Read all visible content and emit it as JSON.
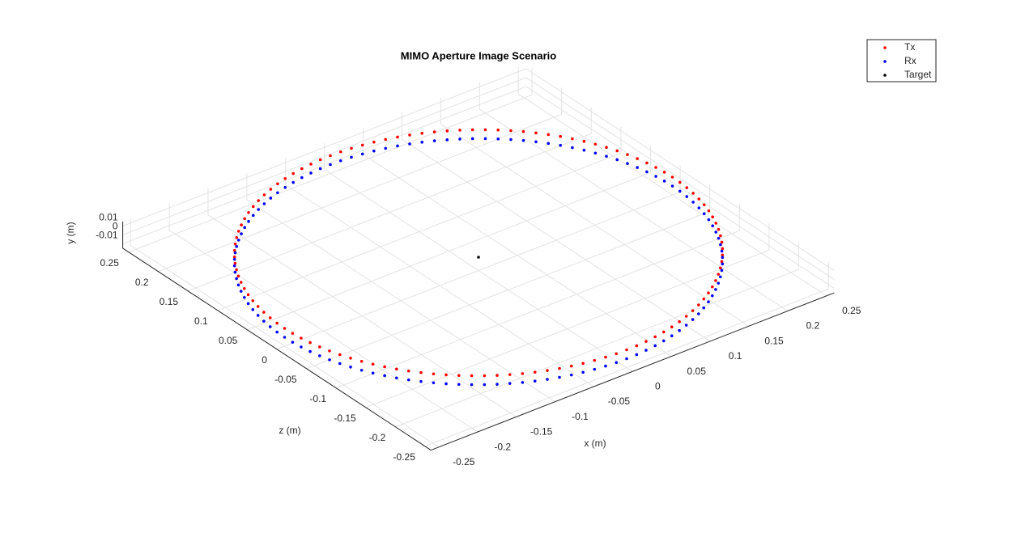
{
  "chart_data": {
    "type": "scatter3d",
    "title": "MIMO Aperture Image Scenario",
    "xlabel": "x (m)",
    "ylabel": "y (m)",
    "zlabel": "z (m)",
    "xlim": [
      -0.26,
      0.26
    ],
    "ylim": [
      -0.015,
      0.015
    ],
    "zlim": [
      -0.26,
      0.26
    ],
    "xticks": [
      -0.25,
      -0.2,
      -0.15,
      -0.1,
      -0.05,
      0,
      0.05,
      0.1,
      0.15,
      0.2,
      0.25
    ],
    "yticks": [
      -0.01,
      0,
      0.01
    ],
    "zticks": [
      -0.25,
      -0.2,
      -0.15,
      -0.1,
      -0.05,
      0,
      0.05,
      0.1,
      0.15,
      0.2,
      0.25
    ],
    "grid": true,
    "legend": "northeast",
    "series": [
      {
        "name": "Tx",
        "color": "#ff0000",
        "x": [
          0.25,
          0.2497,
          0.2486,
          0.2469,
          0.2445,
          0.2415,
          0.2378,
          0.2334,
          0.2284,
          0.2228,
          0.2165,
          0.2097,
          0.2023,
          0.1943,
          0.1858,
          0.1768,
          0.1673,
          0.1573,
          0.1469,
          0.1362,
          0.125,
          0.1135,
          0.1017,
          0.0896,
          0.0773,
          0.0647,
          0.052,
          0.0391,
          0.0261,
          0.0131,
          0,
          -0.0131,
          -0.0261,
          -0.0391,
          -0.052,
          -0.0647,
          -0.0773,
          -0.0896,
          -0.1017,
          -0.1135,
          -0.125,
          -0.1362,
          -0.1469,
          -0.1573,
          -0.1673,
          -0.1768,
          -0.1858,
          -0.1943,
          -0.2023,
          -0.2097,
          -0.2165,
          -0.2228,
          -0.2284,
          -0.2334,
          -0.2378,
          -0.2415,
          -0.2445,
          -0.2469,
          -0.2486,
          -0.2497,
          -0.25,
          -0.2497,
          -0.2486,
          -0.2469,
          -0.2445,
          -0.2415,
          -0.2378,
          -0.2334,
          -0.2284,
          -0.2228,
          -0.2165,
          -0.2097,
          -0.2023,
          -0.1943,
          -0.1858,
          -0.1768,
          -0.1673,
          -0.1573,
          -0.1469,
          -0.1362,
          -0.125,
          -0.1135,
          -0.1017,
          -0.0896,
          -0.0773,
          -0.0647,
          -0.052,
          -0.0391,
          -0.0261,
          -0.0131,
          0,
          0.0131,
          0.0261,
          0.0391,
          0.052,
          0.0647,
          0.0773,
          0.0896,
          0.1017,
          0.1135,
          0.125,
          0.1362,
          0.1469,
          0.1573,
          0.1673,
          0.1768,
          0.1858,
          0.1943,
          0.2023,
          0.2097,
          0.2165,
          0.2228,
          0.2284,
          0.2334,
          0.2378,
          0.2415,
          0.2445,
          0.2469,
          0.2486,
          0.2497
        ],
        "y": [
          0.005,
          0.005,
          0.005,
          0.005,
          0.005,
          0.005,
          0.005,
          0.005,
          0.005,
          0.005,
          0.005,
          0.005,
          0.005,
          0.005,
          0.005,
          0.005,
          0.005,
          0.005,
          0.005,
          0.005,
          0.005,
          0.005,
          0.005,
          0.005,
          0.005,
          0.005,
          0.005,
          0.005,
          0.005,
          0.005,
          0.005,
          0.005,
          0.005,
          0.005,
          0.005,
          0.005,
          0.005,
          0.005,
          0.005,
          0.005,
          0.005,
          0.005,
          0.005,
          0.005,
          0.005,
          0.005,
          0.005,
          0.005,
          0.005,
          0.005,
          0.005,
          0.005,
          0.005,
          0.005,
          0.005,
          0.005,
          0.005,
          0.005,
          0.005,
          0.005,
          0.005,
          0.005,
          0.005,
          0.005,
          0.005,
          0.005,
          0.005,
          0.005,
          0.005,
          0.005,
          0.005,
          0.005,
          0.005,
          0.005,
          0.005,
          0.005,
          0.005,
          0.005,
          0.005,
          0.005,
          0.005,
          0.005,
          0.005,
          0.005,
          0.005,
          0.005,
          0.005,
          0.005,
          0.005,
          0.005,
          0.005,
          0.005,
          0.005,
          0.005,
          0.005,
          0.005,
          0.005,
          0.005,
          0.005,
          0.005,
          0.005,
          0.005,
          0.005,
          0.005,
          0.005,
          0.005,
          0.005,
          0.005,
          0.005,
          0.005,
          0.005,
          0.005,
          0.005,
          0.005,
          0.005,
          0.005,
          0.005,
          0.005,
          0.005,
          0.005
        ],
        "z": [
          0,
          0.0131,
          0.0261,
          0.0391,
          0.052,
          0.0647,
          0.0773,
          0.0896,
          0.1017,
          0.1135,
          0.125,
          0.1362,
          0.1469,
          0.1573,
          0.1673,
          0.1768,
          0.1858,
          0.1943,
          0.2023,
          0.2097,
          0.2165,
          0.2228,
          0.2284,
          0.2334,
          0.2378,
          0.2415,
          0.2445,
          0.2469,
          0.2486,
          0.2497,
          0.25,
          0.2497,
          0.2486,
          0.2469,
          0.2445,
          0.2415,
          0.2378,
          0.2334,
          0.2284,
          0.2228,
          0.2165,
          0.2097,
          0.2023,
          0.1943,
          0.1858,
          0.1768,
          0.1673,
          0.1573,
          0.1469,
          0.1362,
          0.125,
          0.1135,
          0.1017,
          0.0896,
          0.0773,
          0.0647,
          0.052,
          0.0391,
          0.0261,
          0.0131,
          0,
          -0.0131,
          -0.0261,
          -0.0391,
          -0.052,
          -0.0647,
          -0.0773,
          -0.0896,
          -0.1017,
          -0.1135,
          -0.125,
          -0.1362,
          -0.1469,
          -0.1573,
          -0.1673,
          -0.1768,
          -0.1858,
          -0.1943,
          -0.2023,
          -0.2097,
          -0.2165,
          -0.2228,
          -0.2284,
          -0.2334,
          -0.2378,
          -0.2415,
          -0.2445,
          -0.2469,
          -0.2486,
          -0.2497,
          -0.25,
          -0.2497,
          -0.2486,
          -0.2469,
          -0.2445,
          -0.2415,
          -0.2378,
          -0.2334,
          -0.2284,
          -0.2228,
          -0.2165,
          -0.2097,
          -0.2023,
          -0.1943,
          -0.1858,
          -0.1768,
          -0.1673,
          -0.1573,
          -0.1469,
          -0.1362,
          -0.125,
          -0.1135,
          -0.1017,
          -0.0896,
          -0.0773,
          -0.0647,
          -0.052,
          -0.0391,
          -0.0261,
          -0.0131
        ]
      },
      {
        "name": "Rx",
        "color": "#0000ff",
        "x": [
          0.25,
          0.2497,
          0.2486,
          0.2469,
          0.2445,
          0.2415,
          0.2378,
          0.2334,
          0.2284,
          0.2228,
          0.2165,
          0.2097,
          0.2023,
          0.1943,
          0.1858,
          0.1768,
          0.1673,
          0.1573,
          0.1469,
          0.1362,
          0.125,
          0.1135,
          0.1017,
          0.0896,
          0.0773,
          0.0647,
          0.052,
          0.0391,
          0.0261,
          0.0131,
          0,
          -0.0131,
          -0.0261,
          -0.0391,
          -0.052,
          -0.0647,
          -0.0773,
          -0.0896,
          -0.1017,
          -0.1135,
          -0.125,
          -0.1362,
          -0.1469,
          -0.1573,
          -0.1673,
          -0.1768,
          -0.1858,
          -0.1943,
          -0.2023,
          -0.2097,
          -0.2165,
          -0.2228,
          -0.2284,
          -0.2334,
          -0.2378,
          -0.2415,
          -0.2445,
          -0.2469,
          -0.2486,
          -0.2497,
          -0.25,
          -0.2497,
          -0.2486,
          -0.2469,
          -0.2445,
          -0.2415,
          -0.2378,
          -0.2334,
          -0.2284,
          -0.2228,
          -0.2165,
          -0.2097,
          -0.2023,
          -0.1943,
          -0.1858,
          -0.1768,
          -0.1673,
          -0.1573,
          -0.1469,
          -0.1362,
          -0.125,
          -0.1135,
          -0.1017,
          -0.0896,
          -0.0773,
          -0.0647,
          -0.052,
          -0.0391,
          -0.0261,
          -0.0131,
          0,
          0.0131,
          0.0261,
          0.0391,
          0.052,
          0.0647,
          0.0773,
          0.0896,
          0.1017,
          0.1135,
          0.125,
          0.1362,
          0.1469,
          0.1573,
          0.1673,
          0.1768,
          0.1858,
          0.1943,
          0.2023,
          0.2097,
          0.2165,
          0.2228,
          0.2284,
          0.2334,
          0.2378,
          0.2415,
          0.2445,
          0.2469,
          0.2486,
          0.2497
        ],
        "y": [
          -0.005,
          -0.005,
          -0.005,
          -0.005,
          -0.005,
          -0.005,
          -0.005,
          -0.005,
          -0.005,
          -0.005,
          -0.005,
          -0.005,
          -0.005,
          -0.005,
          -0.005,
          -0.005,
          -0.005,
          -0.005,
          -0.005,
          -0.005,
          -0.005,
          -0.005,
          -0.005,
          -0.005,
          -0.005,
          -0.005,
          -0.005,
          -0.005,
          -0.005,
          -0.005,
          -0.005,
          -0.005,
          -0.005,
          -0.005,
          -0.005,
          -0.005,
          -0.005,
          -0.005,
          -0.005,
          -0.005,
          -0.005,
          -0.005,
          -0.005,
          -0.005,
          -0.005,
          -0.005,
          -0.005,
          -0.005,
          -0.005,
          -0.005,
          -0.005,
          -0.005,
          -0.005,
          -0.005,
          -0.005,
          -0.005,
          -0.005,
          -0.005,
          -0.005,
          -0.005,
          -0.005,
          -0.005,
          -0.005,
          -0.005,
          -0.005,
          -0.005,
          -0.005,
          -0.005,
          -0.005,
          -0.005,
          -0.005,
          -0.005,
          -0.005,
          -0.005,
          -0.005,
          -0.005,
          -0.005,
          -0.005,
          -0.005,
          -0.005,
          -0.005,
          -0.005,
          -0.005,
          -0.005,
          -0.005,
          -0.005,
          -0.005,
          -0.005,
          -0.005,
          -0.005,
          -0.005,
          -0.005,
          -0.005,
          -0.005,
          -0.005,
          -0.005,
          -0.005,
          -0.005,
          -0.005,
          -0.005,
          -0.005,
          -0.005,
          -0.005,
          -0.005,
          -0.005,
          -0.005,
          -0.005,
          -0.005,
          -0.005,
          -0.005,
          -0.005,
          -0.005,
          -0.005,
          -0.005,
          -0.005,
          -0.005,
          -0.005,
          -0.005,
          -0.005,
          -0.005
        ],
        "z": [
          0,
          0.0131,
          0.0261,
          0.0391,
          0.052,
          0.0647,
          0.0773,
          0.0896,
          0.1017,
          0.1135,
          0.125,
          0.1362,
          0.1469,
          0.1573,
          0.1673,
          0.1768,
          0.1858,
          0.1943,
          0.2023,
          0.2097,
          0.2165,
          0.2228,
          0.2284,
          0.2334,
          0.2378,
          0.2415,
          0.2445,
          0.2469,
          0.2486,
          0.2497,
          0.25,
          0.2497,
          0.2486,
          0.2469,
          0.2445,
          0.2415,
          0.2378,
          0.2334,
          0.2284,
          0.2228,
          0.2165,
          0.2097,
          0.2023,
          0.1943,
          0.1858,
          0.1768,
          0.1673,
          0.1573,
          0.1469,
          0.1362,
          0.125,
          0.1135,
          0.1017,
          0.0896,
          0.0773,
          0.0647,
          0.052,
          0.0391,
          0.0261,
          0.0131,
          0,
          -0.0131,
          -0.0261,
          -0.0391,
          -0.052,
          -0.0647,
          -0.0773,
          -0.0896,
          -0.1017,
          -0.1135,
          -0.125,
          -0.1362,
          -0.1469,
          -0.1573,
          -0.1673,
          -0.1768,
          -0.1858,
          -0.1943,
          -0.2023,
          -0.2097,
          -0.2165,
          -0.2228,
          -0.2284,
          -0.2334,
          -0.2378,
          -0.2415,
          -0.2445,
          -0.2469,
          -0.2486,
          -0.2497,
          -0.25,
          -0.2497,
          -0.2486,
          -0.2469,
          -0.2445,
          -0.2415,
          -0.2378,
          -0.2334,
          -0.2284,
          -0.2228,
          -0.2165,
          -0.2097,
          -0.2023,
          -0.1943,
          -0.1858,
          -0.1768,
          -0.1673,
          -0.1573,
          -0.1469,
          -0.1362,
          -0.125,
          -0.1135,
          -0.1017,
          -0.0896,
          -0.0773,
          -0.0647,
          -0.052,
          -0.0391,
          -0.0261,
          -0.0131
        ]
      },
      {
        "name": "Target",
        "color": "#000000",
        "x": [
          0
        ],
        "y": [
          0
        ],
        "z": [
          0
        ]
      }
    ]
  }
}
